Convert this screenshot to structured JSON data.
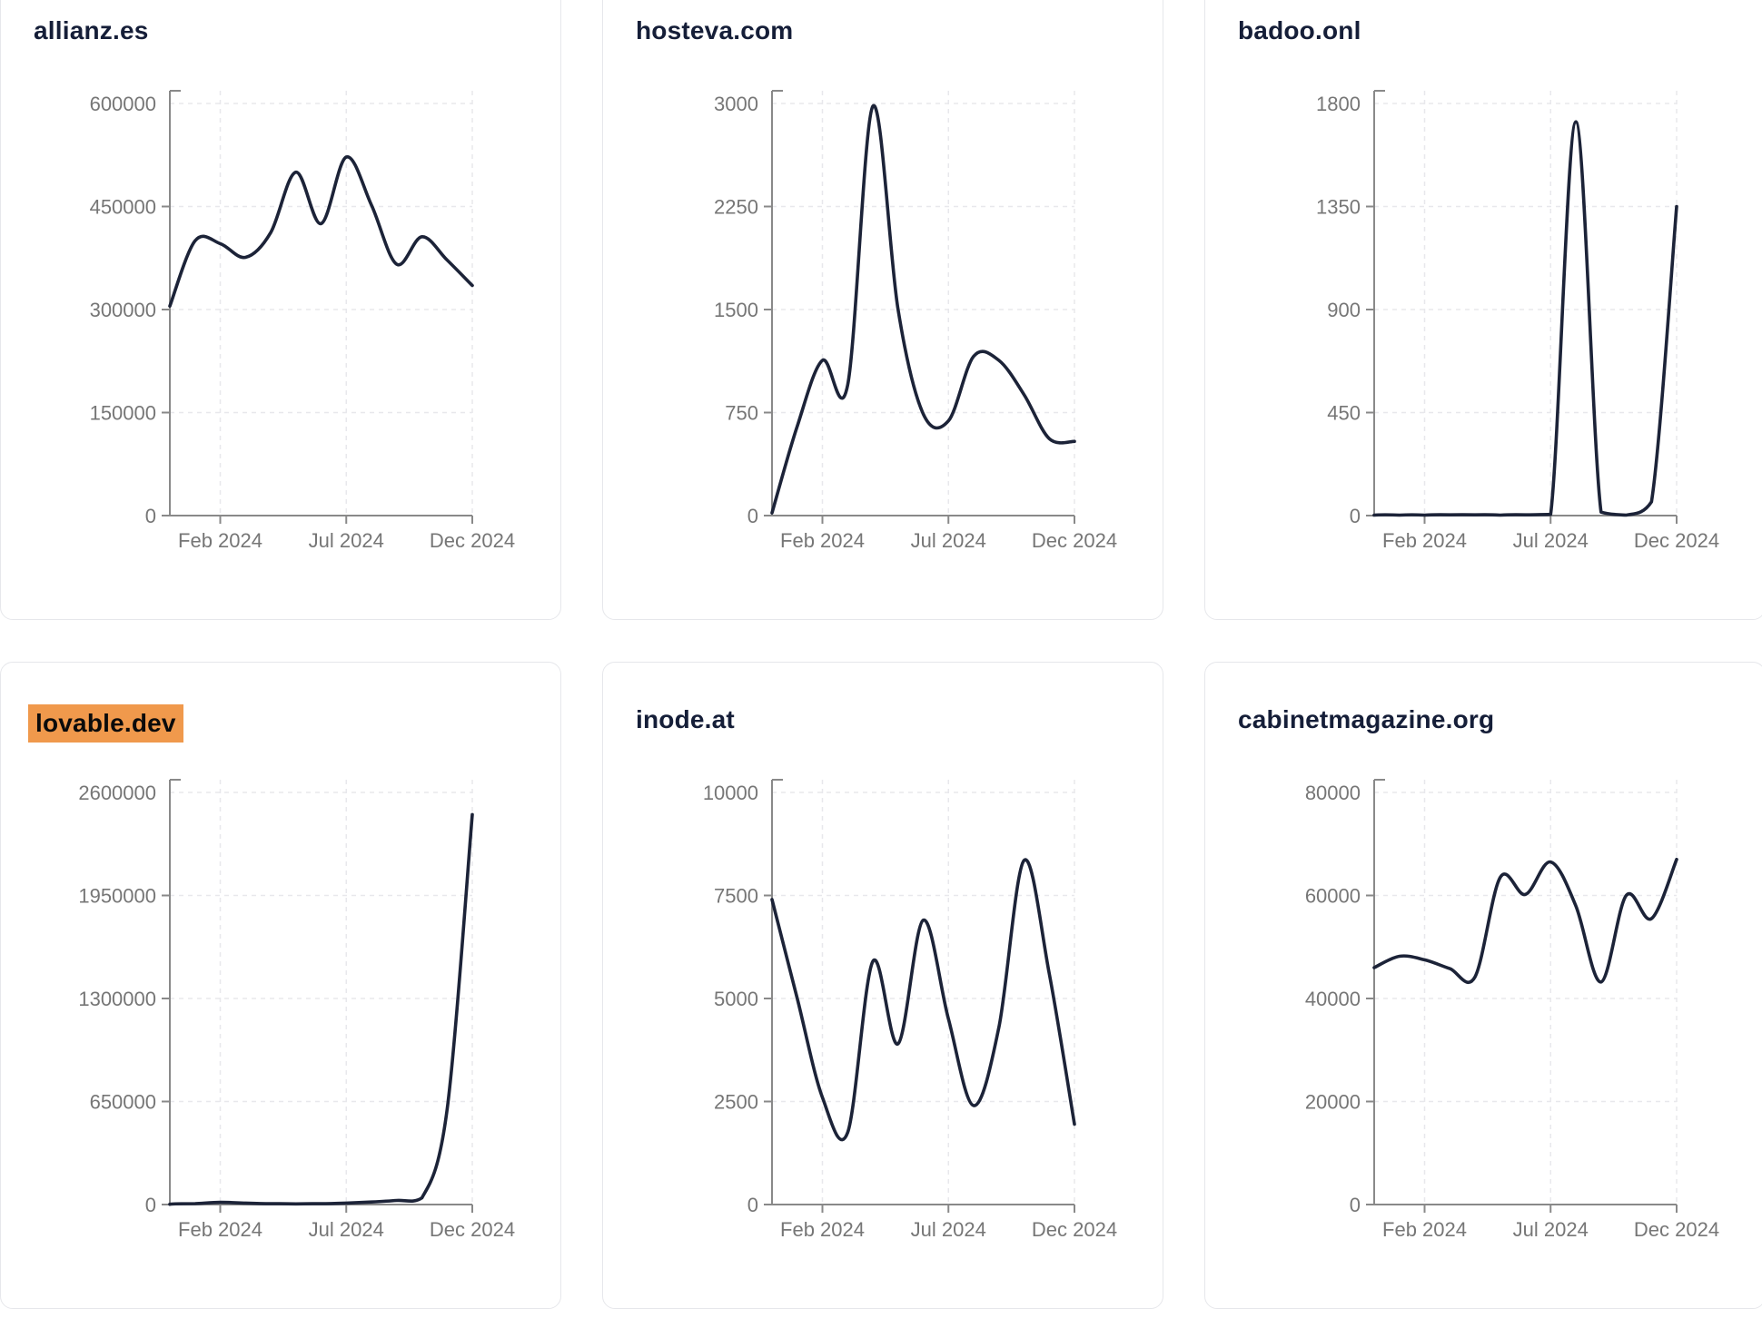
{
  "colors": {
    "series_line": "#1c2338",
    "axis": "#898989",
    "gridline": "#e8e8ec",
    "tick_text": "#767676",
    "title_text": "#151e38",
    "highlight_bg": "#f0994c",
    "highlight_text": "#0b0b0b",
    "card_border": "#e6e7eb",
    "card_bg": "#ffffff"
  },
  "chart_data": [
    {
      "type": "line",
      "title": "allianz.es",
      "highlighted": false,
      "x": [
        "Dec 2023",
        "Jan 2024",
        "Feb 2024",
        "Mar 2024",
        "Apr 2024",
        "May 2024",
        "Jun 2024",
        "Jul 2024",
        "Aug 2024",
        "Sep 2024",
        "Oct 2024",
        "Nov 2024",
        "Dec 2024"
      ],
      "values": [
        305000,
        400000,
        396000,
        376000,
        412000,
        500000,
        425000,
        522000,
        452000,
        366000,
        406000,
        372000,
        335000
      ],
      "ylim": [
        0,
        600000
      ],
      "yticks": [
        0,
        150000,
        300000,
        450000,
        600000
      ],
      "ytick_labels": [
        "0",
        "150000",
        "300000",
        "450000",
        "600000"
      ],
      "xtick_labels": [
        "Feb 2024",
        "Jul 2024",
        "Dec 2024"
      ],
      "xtick_indices": [
        2,
        7,
        12
      ],
      "grid": true,
      "legend": "none"
    },
    {
      "type": "line",
      "title": "hosteva.com",
      "highlighted": false,
      "x": [
        "Dec 2023",
        "Jan 2024",
        "Feb 2024",
        "Mar 2024",
        "Apr 2024",
        "May 2024",
        "Jun 2024",
        "Jul 2024",
        "Aug 2024",
        "Sep 2024",
        "Oct 2024",
        "Nov 2024",
        "Dec 2024"
      ],
      "values": [
        20,
        650,
        1130,
        950,
        2980,
        1500,
        740,
        690,
        1160,
        1130,
        880,
        560,
        540
      ],
      "ylim": [
        0,
        3000
      ],
      "yticks": [
        0,
        750,
        1500,
        2250,
        3000
      ],
      "ytick_labels": [
        "0",
        "750",
        "1500",
        "2250",
        "3000"
      ],
      "xtick_labels": [
        "Feb 2024",
        "Jul 2024",
        "Dec 2024"
      ],
      "xtick_indices": [
        2,
        7,
        12
      ],
      "grid": true,
      "legend": "none"
    },
    {
      "type": "line",
      "title": "badoo.onl",
      "highlighted": false,
      "x": [
        "Dec 2023",
        "Jan 2024",
        "Feb 2024",
        "Mar 2024",
        "Apr 2024",
        "May 2024",
        "Jun 2024",
        "Jul 2024",
        "Aug 2024",
        "Sep 2024",
        "Oct 2024",
        "Nov 2024",
        "Dec 2024"
      ],
      "values": [
        2,
        2,
        2,
        3,
        3,
        2,
        3,
        5,
        1720,
        15,
        2,
        60,
        1350
      ],
      "ylim": [
        0,
        1800
      ],
      "yticks": [
        0,
        450,
        900,
        1350,
        1800
      ],
      "ytick_labels": [
        "0",
        "450",
        "900",
        "1350",
        "1800"
      ],
      "xtick_labels": [
        "Feb 2024",
        "Jul 2024",
        "Dec 2024"
      ],
      "xtick_indices": [
        2,
        7,
        12
      ],
      "grid": true,
      "legend": "none"
    },
    {
      "type": "line",
      "title": "lovable.dev",
      "highlighted": true,
      "x": [
        "Dec 2023",
        "Jan 2024",
        "Feb 2024",
        "Mar 2024",
        "Apr 2024",
        "May 2024",
        "Jun 2024",
        "Jul 2024",
        "Aug 2024",
        "Sep 2024",
        "Oct 2024",
        "Nov 2024",
        "Dec 2024"
      ],
      "values": [
        2000,
        6000,
        14000,
        9000,
        5000,
        4000,
        5000,
        9000,
        16000,
        26000,
        42000,
        600000,
        2460000
      ],
      "ylim": [
        0,
        2600000
      ],
      "yticks": [
        0,
        650000,
        1300000,
        1950000,
        2600000
      ],
      "ytick_labels": [
        "0",
        "650000",
        "1300000",
        "1950000",
        "2600000"
      ],
      "xtick_labels": [
        "Feb 2024",
        "Jul 2024",
        "Dec 2024"
      ],
      "xtick_indices": [
        2,
        7,
        12
      ],
      "grid": true,
      "legend": "none"
    },
    {
      "type": "line",
      "title": "inode.at",
      "highlighted": false,
      "x": [
        "Dec 2023",
        "Jan 2024",
        "Feb 2024",
        "Mar 2024",
        "Apr 2024",
        "May 2024",
        "Jun 2024",
        "Jul 2024",
        "Aug 2024",
        "Sep 2024",
        "Oct 2024",
        "Nov 2024",
        "Dec 2024"
      ],
      "values": [
        7400,
        5000,
        2600,
        1750,
        5900,
        3900,
        6900,
        4500,
        2400,
        4300,
        8350,
        5600,
        1950
      ],
      "ylim": [
        0,
        10000
      ],
      "yticks": [
        0,
        2500,
        5000,
        7500,
        10000
      ],
      "ytick_labels": [
        "0",
        "2500",
        "5000",
        "7500",
        "10000"
      ],
      "xtick_labels": [
        "Feb 2024",
        "Jul 2024",
        "Dec 2024"
      ],
      "xtick_indices": [
        2,
        7,
        12
      ],
      "grid": true,
      "legend": "none"
    },
    {
      "type": "line",
      "title": "cabinetmagazine.org",
      "highlighted": false,
      "x": [
        "Dec 2023",
        "Jan 2024",
        "Feb 2024",
        "Mar 2024",
        "Apr 2024",
        "May 2024",
        "Jun 2024",
        "Jul 2024",
        "Aug 2024",
        "Sep 2024",
        "Oct 2024",
        "Nov 2024",
        "Dec 2024"
      ],
      "values": [
        46000,
        48200,
        47500,
        45800,
        44200,
        63500,
        60200,
        66500,
        58000,
        43200,
        60000,
        55500,
        67000
      ],
      "ylim": [
        0,
        80000
      ],
      "yticks": [
        0,
        20000,
        40000,
        60000,
        80000
      ],
      "ytick_labels": [
        "0",
        "20000",
        "40000",
        "60000",
        "80000"
      ],
      "xtick_labels": [
        "Feb 2024",
        "Jul 2024",
        "Dec 2024"
      ],
      "xtick_indices": [
        2,
        7,
        12
      ],
      "grid": true,
      "legend": "none"
    }
  ]
}
